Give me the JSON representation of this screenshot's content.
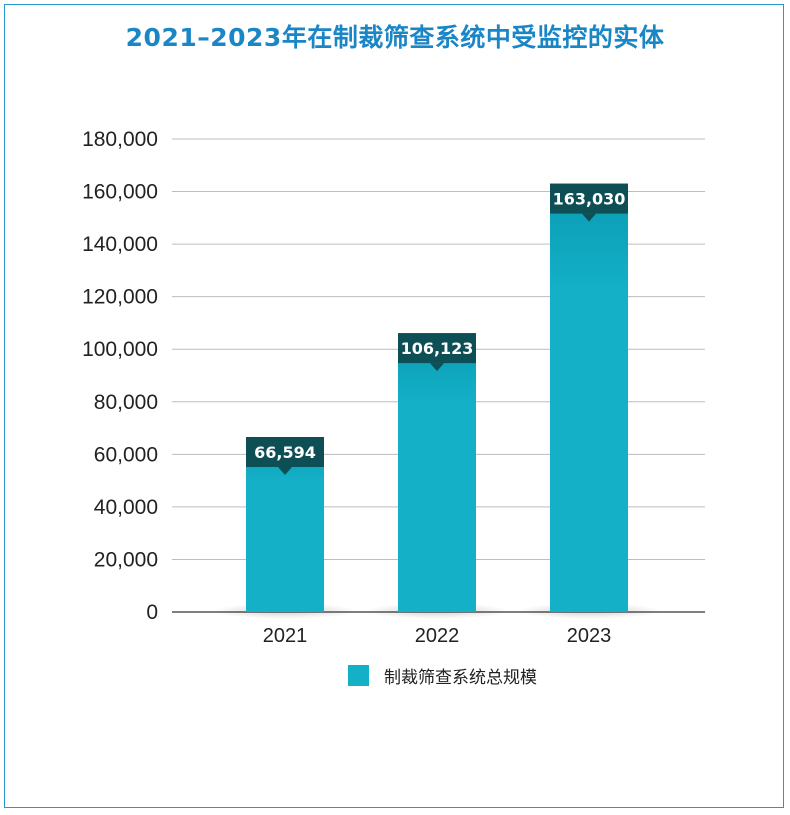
{
  "chart_data": {
    "type": "bar",
    "title": "2021–2023年在制裁筛查系统中受监控的实体",
    "categories": [
      "2021",
      "2022",
      "2023"
    ],
    "series": [
      {
        "name": "制裁筛查系统总规模",
        "values": [
          66594,
          106123,
          163030
        ]
      }
    ],
    "data_labels": [
      "66,594",
      "106,123",
      "163,030"
    ],
    "y_ticks": [
      "0",
      "20,000",
      "40,000",
      "60,000",
      "80,000",
      "100,000",
      "120,000",
      "140,000",
      "160,000",
      "180,000"
    ],
    "ylim": [
      0,
      180000
    ],
    "xlabel": "",
    "ylabel": "",
    "grid": true,
    "legend_position": "bottom",
    "colors": {
      "bar": "#13b0c8",
      "bar_dark": "#0a97ae",
      "label_bg": "#0d4f55",
      "title": "#1b86c6",
      "grid": "#bdbdbd",
      "frame": "#2a97c9"
    }
  }
}
